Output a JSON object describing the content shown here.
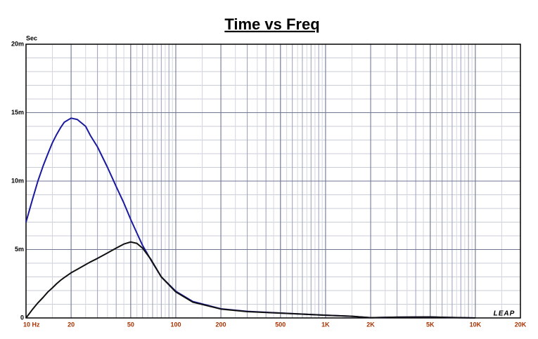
{
  "chart_data": {
    "type": "line",
    "title": "Time vs Freq",
    "y_label": "Sec",
    "logo": "LEAP",
    "x_scale": "log",
    "grid": true,
    "x": [
      10,
      11,
      12,
      13,
      14,
      15,
      16,
      17,
      18,
      20,
      22,
      25,
      27,
      30,
      35,
      40,
      45,
      50,
      55,
      60,
      68,
      80,
      100,
      130,
      200,
      300,
      500,
      1000,
      1500,
      2000,
      3000,
      5000,
      7000,
      10000
    ],
    "series": [
      {
        "name": "Blue",
        "color": "#1a1aa0",
        "values": [
          0.007,
          0.0086,
          0.01,
          0.0111,
          0.012,
          0.0128,
          0.0134,
          0.0139,
          0.0143,
          0.0146,
          0.0145,
          0.014,
          0.0133,
          0.0125,
          0.011,
          0.0096,
          0.0084,
          0.0072,
          0.0062,
          0.0053,
          0.00426,
          0.003,
          0.00195,
          0.0012,
          0.00067,
          0.00048,
          0.00036,
          0.0002,
          0.00012,
          2e-05,
          6e-05,
          7e-05,
          3e-05,
          0
        ]
      },
      {
        "name": "Black",
        "color": "#111111",
        "values": [
          0,
          0.0006,
          0.0011,
          0.0015,
          0.0019,
          0.0022,
          0.0025,
          0.00275,
          0.00295,
          0.0033,
          0.00355,
          0.0039,
          0.0041,
          0.00435,
          0.00475,
          0.0051,
          0.0054,
          0.00555,
          0.00545,
          0.0051,
          0.0043,
          0.003,
          0.0019,
          0.00115,
          0.00065,
          0.00046,
          0.00035,
          0.0002,
          0.00012,
          2e-05,
          6e-05,
          7e-05,
          3e-05,
          0
        ]
      }
    ],
    "xlim": [
      10,
      20000
    ],
    "xticks": [
      {
        "value": 10,
        "label": "10 Hz"
      },
      20,
      50,
      100,
      200,
      500,
      {
        "value": 1000,
        "label": "1K"
      },
      {
        "value": 2000,
        "label": "2K"
      },
      {
        "value": 5000,
        "label": "5K"
      },
      {
        "value": 10000,
        "label": "10K"
      },
      {
        "value": 20000,
        "label": "20K"
      }
    ],
    "ylim": [
      0,
      0.02
    ],
    "yticks": [
      0,
      {
        "value": 0.005,
        "label": "5m"
      },
      {
        "value": 0.01,
        "label": "10m"
      },
      {
        "value": 0.015,
        "label": "15m"
      },
      {
        "value": 0.02,
        "label": "20m"
      }
    ]
  }
}
